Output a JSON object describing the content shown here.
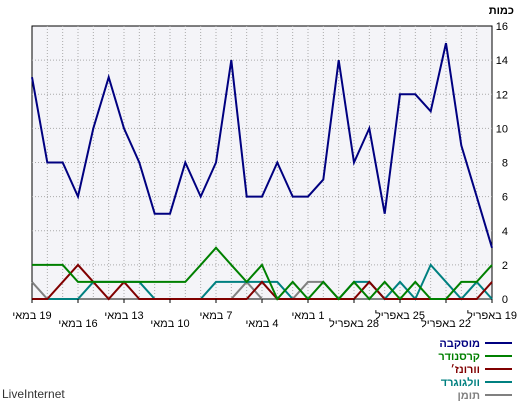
{
  "brand": "LiveInternet",
  "chart_data": {
    "type": "line",
    "ylabel": "כמות",
    "ylim": [
      0,
      16
    ],
    "yticks": [
      0,
      2,
      4,
      6,
      8,
      10,
      12,
      14,
      16
    ],
    "grid": true,
    "legend_position": "bottom-right",
    "x": [
      "19 במאי",
      "18 במאי",
      "17 במאי",
      "16 במאי",
      "15 במאי",
      "14 במאי",
      "13 במאי",
      "12 במאי",
      "11 במאי",
      "10 במאי",
      "9 במאי",
      "8 במאי",
      "7 במאי",
      "6 במאי",
      "5 במאי",
      "4 במאי",
      "3 במאי",
      "2 במאי",
      "1 במאי",
      "30 באפריל",
      "29 באפריל",
      "28 באפריל",
      "27 באפריל",
      "26 באפריל",
      "25 באפריל",
      "24 באפריל",
      "23 באפריל",
      "22 באפריל",
      "21 באפריל",
      "20 באפריל",
      "19 באפריל"
    ],
    "xtick_labels": [
      "19 במאי",
      "16 במאי",
      "13 במאי",
      "10 במאי",
      "7 במאי",
      "4 במאי",
      "1 במאי",
      "28 באפריל",
      "25 באפריל",
      "22 באפריל",
      "19 באפריל"
    ],
    "series": [
      {
        "name": "מוסקבה",
        "color": "#000080",
        "values": [
          13,
          8,
          8,
          6,
          10,
          13,
          10,
          8,
          5,
          5,
          8,
          6,
          8,
          14,
          6,
          6,
          8,
          6,
          6,
          7,
          14,
          8,
          10,
          5,
          12,
          12,
          11,
          15,
          9,
          6,
          3
        ]
      },
      {
        "name": "קרסנודר",
        "color": "#008000",
        "values": [
          2,
          2,
          2,
          1,
          1,
          1,
          1,
          1,
          1,
          1,
          1,
          2,
          3,
          2,
          1,
          2,
          0,
          1,
          0,
          1,
          0,
          1,
          0,
          1,
          0,
          1,
          0,
          0,
          1,
          1,
          2
        ]
      },
      {
        "name": "וורונז׳",
        "color": "#800000",
        "values": [
          0,
          0,
          1,
          2,
          1,
          0,
          1,
          0,
          0,
          0,
          0,
          0,
          0,
          0,
          0,
          1,
          0,
          0,
          0,
          0,
          0,
          0,
          1,
          0,
          0,
          0,
          0,
          0,
          0,
          0,
          1
        ]
      },
      {
        "name": "וולגוגרד",
        "color": "#008080",
        "values": [
          0,
          0,
          0,
          0,
          1,
          1,
          1,
          1,
          0,
          0,
          0,
          0,
          1,
          1,
          1,
          1,
          1,
          0,
          0,
          0,
          0,
          1,
          1,
          0,
          1,
          0,
          2,
          1,
          0,
          1,
          0
        ]
      },
      {
        "name": "תומן",
        "color": "#808080",
        "values": [
          1,
          0,
          0,
          0,
          0,
          0,
          0,
          0,
          0,
          0,
          0,
          0,
          0,
          0,
          1,
          0,
          0,
          0,
          1,
          1,
          0,
          0,
          0,
          0,
          0,
          0,
          0,
          0,
          0,
          0,
          0
        ]
      }
    ]
  }
}
